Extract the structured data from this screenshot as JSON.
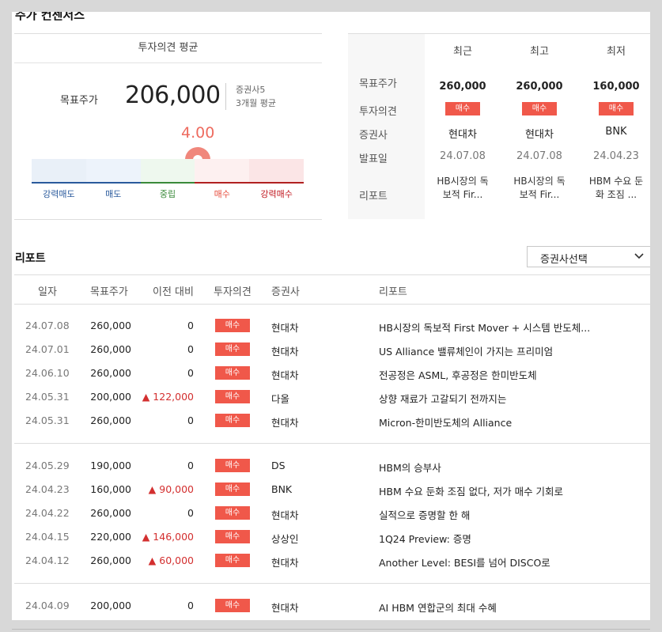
{
  "section_title": "주가 컨센서스",
  "summary": {
    "header": "투자의견 평균",
    "target_label": "목표주가",
    "target_value": "206,000",
    "meta_brokers": "증권사5",
    "meta_period": "3개월 평균",
    "score": "4.00",
    "scale": [
      "강력매도",
      "매도",
      "중립",
      "매수",
      "강력매수"
    ]
  },
  "comparison": {
    "columns": [
      "최근",
      "최고",
      "최저"
    ],
    "row_labels": [
      "목표주가",
      "투자의견",
      "증권사",
      "발표일",
      "리포트"
    ],
    "cells": [
      {
        "target": "260,000",
        "opinion": "매수",
        "broker": "현대차",
        "date": "24.07.08",
        "report1": "HB시장의 독",
        "report2": "보적 Fir..."
      },
      {
        "target": "260,000",
        "opinion": "매수",
        "broker": "현대차",
        "date": "24.07.08",
        "report1": "HB시장의 독",
        "report2": "보적 Fir..."
      },
      {
        "target": "160,000",
        "opinion": "매수",
        "broker": "BNK",
        "date": "24.04.23",
        "report1": "HBM 수요 둔",
        "report2": "화 조짐 ..."
      }
    ]
  },
  "reports": {
    "title": "리포트",
    "broker_select": "증권사선택",
    "headers": [
      "일자",
      "목표주가",
      "이전 대비",
      "투자의견",
      "증권사",
      "리포트"
    ],
    "rows": [
      {
        "date": "24.07.08",
        "target": "260,000",
        "change": "0",
        "opinion": "매수",
        "broker": "현대차",
        "title": "HB시장의 독보적 First Mover + 시스템 반도체..."
      },
      {
        "date": "24.07.01",
        "target": "260,000",
        "change": "0",
        "opinion": "매수",
        "broker": "현대차",
        "title": "US Alliance 밸류체인이 가지는 프리미엄"
      },
      {
        "date": "24.06.10",
        "target": "260,000",
        "change": "0",
        "opinion": "매수",
        "broker": "현대차",
        "title": "전공정은 ASML, 후공정은 한미반도체"
      },
      {
        "date": "24.05.31",
        "target": "200,000",
        "change": "▲ 122,000",
        "opinion": "매수",
        "broker": "다올",
        "title": "상향 재료가 고갈되기 전까지는"
      },
      {
        "date": "24.05.31",
        "target": "260,000",
        "change": "0",
        "opinion": "매수",
        "broker": "현대차",
        "title": "Micron-한미반도체의 Alliance"
      },
      {
        "date": "24.05.29",
        "target": "190,000",
        "change": "0",
        "opinion": "매수",
        "broker": "DS",
        "title": "HBM의 승부사"
      },
      {
        "date": "24.04.23",
        "target": "160,000",
        "change": "▲ 90,000",
        "opinion": "매수",
        "broker": "BNK",
        "title": "HBM 수요 둔화 조짐 없다, 저가 매수 기회로"
      },
      {
        "date": "24.04.22",
        "target": "260,000",
        "change": "0",
        "opinion": "매수",
        "broker": "현대차",
        "title": "실적으로 증명할 한 해"
      },
      {
        "date": "24.04.15",
        "target": "220,000",
        "change": "▲ 146,000",
        "opinion": "매수",
        "broker": "상상인",
        "title": "1Q24 Preview: 증명"
      },
      {
        "date": "24.04.12",
        "target": "260,000",
        "change": "▲ 60,000",
        "opinion": "매수",
        "broker": "현대차",
        "title": "Another Level: BESI를 넘어 DISCO로"
      },
      {
        "date": "24.04.09",
        "target": "200,000",
        "change": "0",
        "opinion": "매수",
        "broker": "현대차",
        "title": "AI HBM 연합군의 최대 수혜"
      }
    ]
  },
  "colors": {
    "accent_red": "#f0584a",
    "up_red": "#d32f2f"
  }
}
